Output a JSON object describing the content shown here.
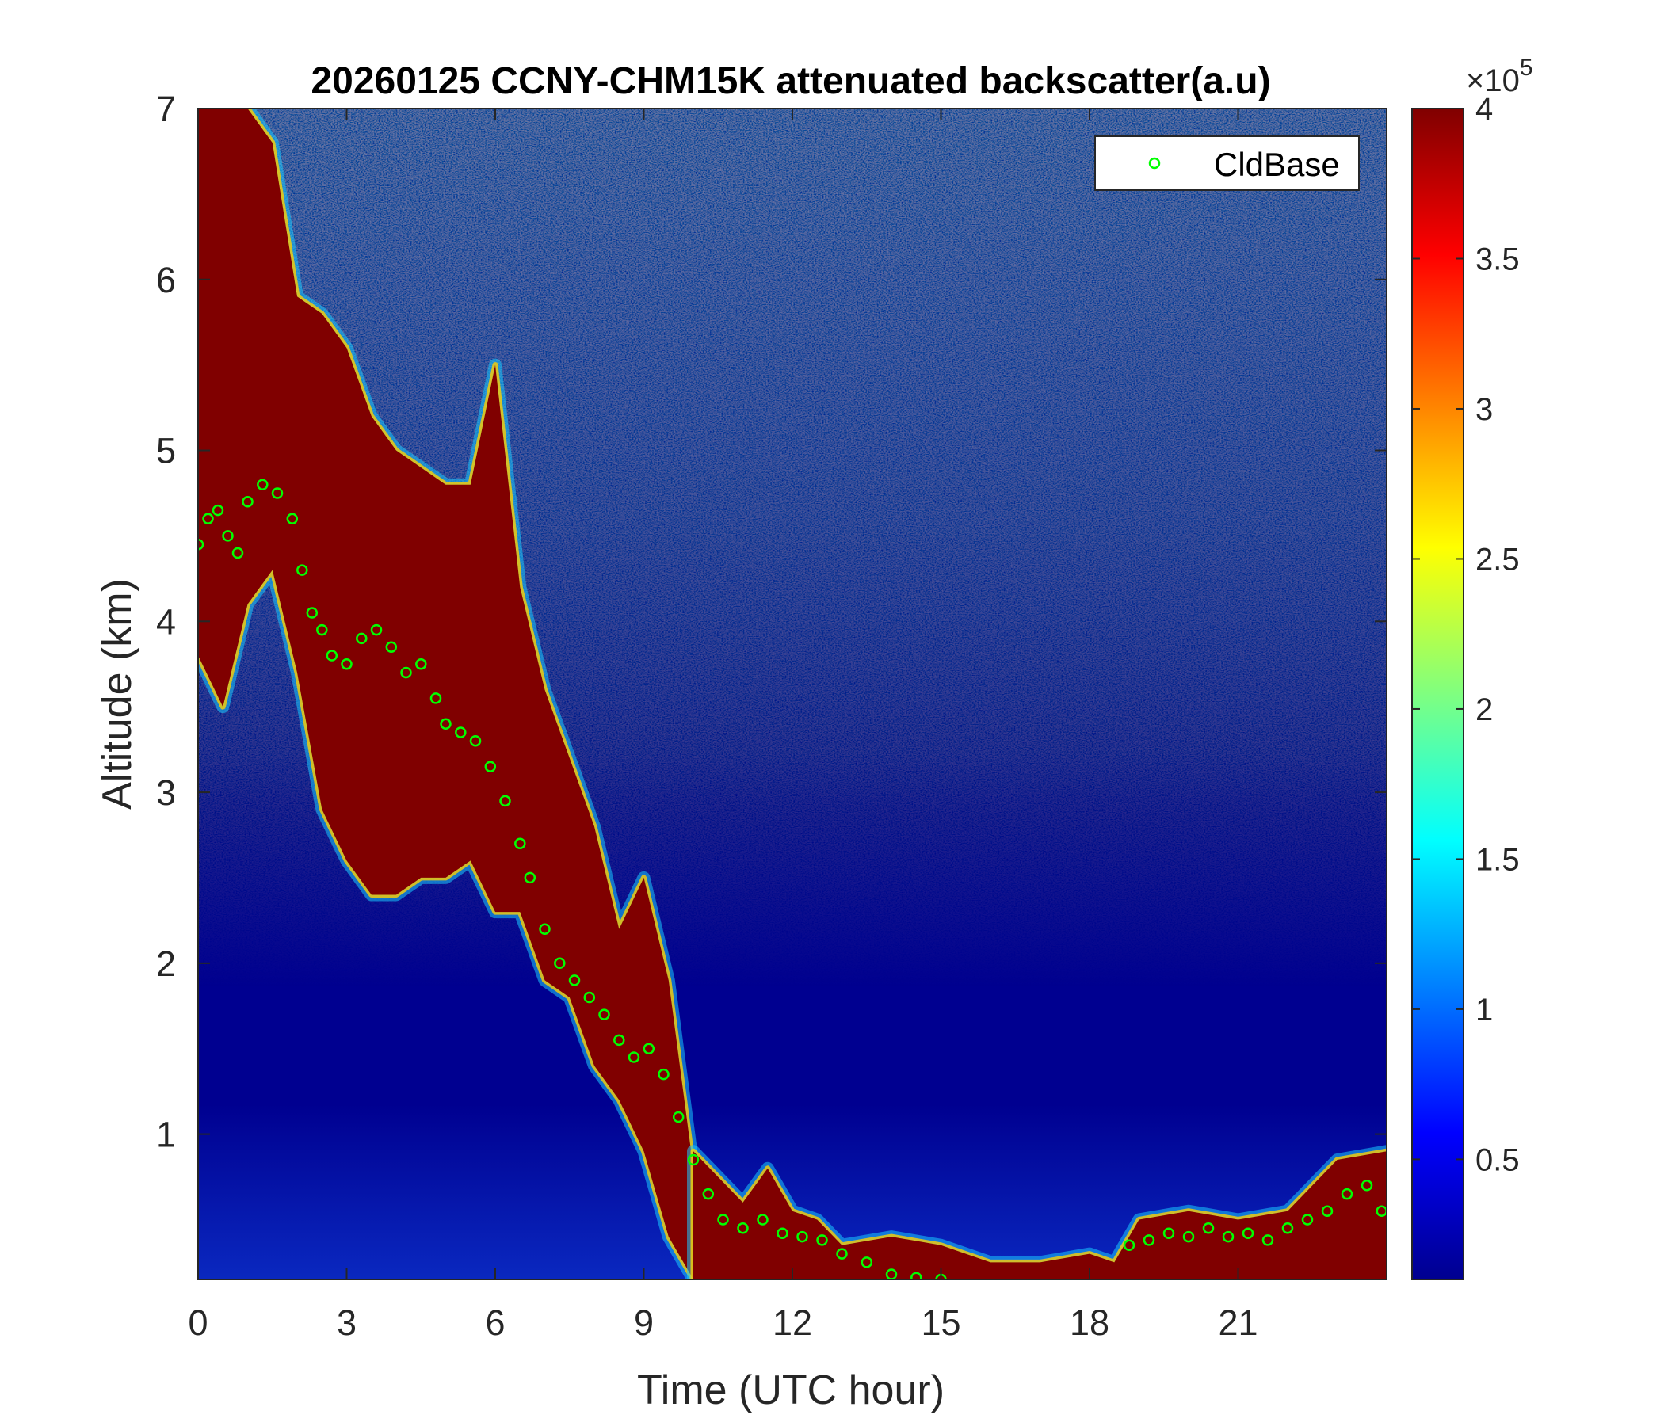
{
  "chart_data": {
    "type": "heatmap",
    "title": "20260125 CCNY-CHM15K attenuated backscatter(a.u)",
    "xlabel": "Time (UTC hour)",
    "ylabel": "Altitude (km)",
    "xlim": [
      0,
      24
    ],
    "ylim": [
      0.15,
      7
    ],
    "xticks": [
      0,
      3,
      6,
      9,
      12,
      15,
      18,
      21
    ],
    "yticks": [
      1,
      2,
      3,
      4,
      5,
      6,
      7
    ],
    "colormap": "jet",
    "colorbar": {
      "lim": [
        0.1,
        4.0
      ],
      "ticks": [
        0.5,
        1,
        1.5,
        2,
        2.5,
        3,
        3.5,
        4
      ],
      "tick_labels": [
        "0.5",
        "1",
        "1.5",
        "2",
        "2.5",
        "3",
        "3.5",
        "4"
      ],
      "multiplier_base": "×10",
      "multiplier_exp": "5"
    },
    "legend": {
      "placement": "top-right",
      "entries": [
        "CldBase"
      ]
    },
    "series": [
      {
        "name": "CldBase",
        "marker": "circle",
        "color": "#00ff00",
        "x": [
          0,
          0.2,
          0.4,
          0.6,
          0.8,
          1.0,
          1.3,
          1.6,
          1.9,
          2.1,
          2.3,
          2.5,
          2.7,
          3.0,
          3.3,
          3.6,
          3.9,
          4.2,
          4.5,
          4.8,
          5.0,
          5.3,
          5.6,
          5.9,
          6.2,
          6.5,
          6.7,
          7.0,
          7.3,
          7.6,
          7.9,
          8.2,
          8.5,
          8.8,
          9.1,
          9.4,
          9.7,
          10.0,
          10.3,
          10.6,
          11.0,
          11.4,
          11.8,
          12.2,
          12.6,
          13.0,
          13.5,
          14.0,
          14.5,
          15.0,
          18.8,
          19.2,
          19.6,
          20.0,
          20.4,
          20.8,
          21.2,
          21.6,
          22.0,
          22.4,
          22.8,
          23.2,
          23.6,
          23.9
        ],
        "y": [
          4.45,
          4.6,
          4.65,
          4.5,
          4.4,
          4.7,
          4.8,
          4.75,
          4.6,
          4.3,
          4.05,
          3.95,
          3.8,
          3.75,
          3.9,
          3.95,
          3.85,
          3.7,
          3.75,
          3.55,
          3.4,
          3.35,
          3.3,
          3.15,
          2.95,
          2.7,
          2.5,
          2.2,
          2.0,
          1.9,
          1.8,
          1.7,
          1.55,
          1.45,
          1.5,
          1.35,
          1.1,
          0.85,
          0.65,
          0.5,
          0.45,
          0.5,
          0.42,
          0.4,
          0.38,
          0.3,
          0.25,
          0.18,
          0.16,
          0.15,
          0.35,
          0.38,
          0.42,
          0.4,
          0.45,
          0.4,
          0.42,
          0.38,
          0.45,
          0.5,
          0.55,
          0.65,
          0.7,
          0.55
        ]
      }
    ],
    "features": [
      {
        "name": "high cloud layer (saturated)",
        "time": [
          0,
          0.5,
          1.0,
          1.5,
          2.0,
          2.5,
          3.0,
          3.5,
          4.0,
          4.5,
          5.0,
          5.5,
          6.0,
          6.5,
          7.0,
          7.5,
          8.0,
          8.5,
          9.0,
          9.5,
          10.0
        ],
        "top_km": [
          7.0,
          7.0,
          7.0,
          6.8,
          5.9,
          5.8,
          5.6,
          5.2,
          5.0,
          4.9,
          4.8,
          4.8,
          5.5,
          4.2,
          3.6,
          3.2,
          2.8,
          2.2,
          2.5,
          1.9,
          0.8
        ],
        "base_km": [
          3.8,
          3.5,
          4.1,
          4.3,
          3.7,
          2.9,
          2.6,
          2.4,
          2.4,
          2.5,
          2.5,
          2.6,
          2.3,
          2.3,
          1.9,
          1.8,
          1.4,
          1.2,
          0.9,
          0.4,
          0.15
        ]
      },
      {
        "name": "boundary layer (saturated)",
        "time": [
          10.0,
          11.0,
          11.5,
          12.0,
          12.5,
          13.0,
          14.0,
          15.0,
          16.0,
          17.0,
          18.0,
          18.5,
          19.0,
          20.0,
          21.0,
          22.0,
          23.0,
          24.0
        ],
        "top_km": [
          0.9,
          0.6,
          0.8,
          0.55,
          0.5,
          0.35,
          0.4,
          0.35,
          0.25,
          0.25,
          0.3,
          0.25,
          0.5,
          0.55,
          0.5,
          0.55,
          0.85,
          0.9
        ],
        "base_km": [
          0.15,
          0.15,
          0.15,
          0.15,
          0.15,
          0.15,
          0.15,
          0.15,
          0.15,
          0.15,
          0.15,
          0.15,
          0.15,
          0.15,
          0.15,
          0.15,
          0.15,
          0.15
        ]
      }
    ]
  }
}
